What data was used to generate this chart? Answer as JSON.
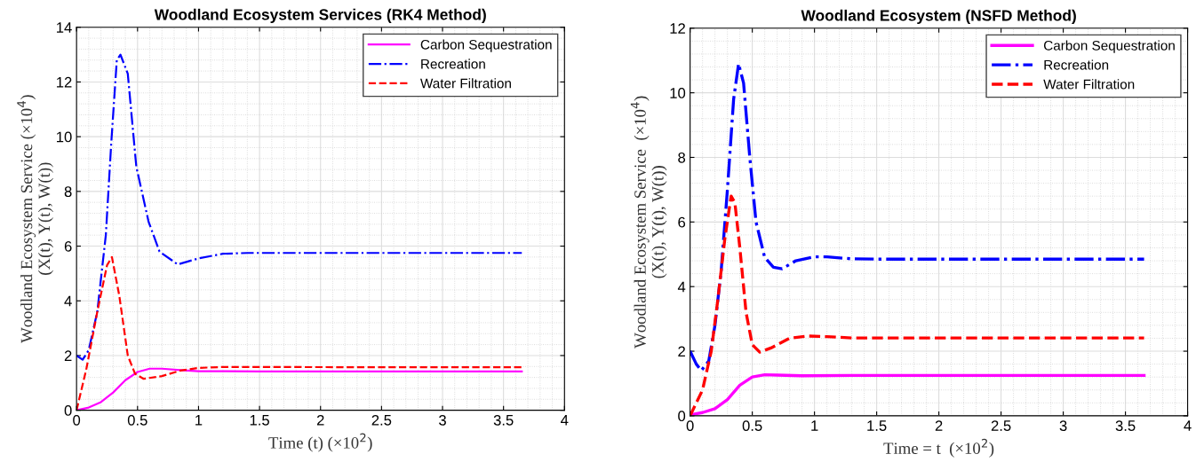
{
  "chart_data": [
    {
      "type": "line",
      "title": "Woodland Ecosystem Services (RK4 Method)",
      "xlabel": "Time (t) (×10$^{2}$)",
      "ylabel": "Woodland Ecosystem Service (×10$^{4}$)\n(X(t), Y(t), W(t))",
      "xlim": [
        0,
        4
      ],
      "xticks": [
        0,
        0.5,
        1,
        1.5,
        2,
        2.5,
        3,
        3.5,
        4
      ],
      "ylim": [
        0,
        14
      ],
      "yticks": [
        0,
        2,
        4,
        6,
        8,
        10,
        12,
        14
      ],
      "grid": true,
      "legend": "top right",
      "series": [
        {
          "name": "Carbon Sequestration",
          "color": "#ff00ff",
          "line_style": "solid",
          "x": [
            0,
            0.1,
            0.2,
            0.3,
            0.4,
            0.5,
            0.6,
            0.7,
            0.85,
            1.0,
            1.5,
            3.65
          ],
          "values": [
            0,
            0.1,
            0.3,
            0.65,
            1.1,
            1.4,
            1.52,
            1.52,
            1.47,
            1.43,
            1.42,
            1.42
          ]
        },
        {
          "name": "Recreation",
          "color": "#0000ff",
          "line_style": "dashdot",
          "x": [
            0,
            0.05,
            0.1,
            0.17,
            0.24,
            0.285,
            0.33,
            0.36,
            0.42,
            0.49,
            0.59,
            0.68,
            0.83,
            1.0,
            1.2,
            1.4,
            3.65
          ],
          "values": [
            2.0,
            1.85,
            2.2,
            3.6,
            6.4,
            9.8,
            12.8,
            13.0,
            12.3,
            8.9,
            6.9,
            5.8,
            5.33,
            5.55,
            5.72,
            5.75,
            5.75
          ]
        },
        {
          "name": "Water Filtration",
          "color": "#ff0000",
          "line_style": "dashed",
          "x": [
            0,
            0.08,
            0.17,
            0.25,
            0.29,
            0.35,
            0.42,
            0.48,
            0.55,
            0.7,
            0.85,
            1.0,
            1.2,
            3.65
          ],
          "values": [
            0,
            1.5,
            3.6,
            5.3,
            5.6,
            4.2,
            2.0,
            1.33,
            1.15,
            1.25,
            1.45,
            1.55,
            1.58,
            1.57
          ]
        }
      ]
    },
    {
      "type": "line",
      "title": "Woodland Ecosystem (NSFD Method)",
      "xlabel": "Time = t  (×10$^{2}$)",
      "ylabel": "Woodland Ecosystem Service  (×10$^{4}$)\n(X(t), Y(t), W(t))",
      "xlim": [
        0,
        4
      ],
      "xticks": [
        0,
        0.5,
        1,
        1.5,
        2,
        2.5,
        3,
        3.5,
        4
      ],
      "ylim": [
        0,
        12
      ],
      "yticks": [
        0,
        2,
        4,
        6,
        8,
        10,
        12
      ],
      "grid": true,
      "legend": "top right",
      "series": [
        {
          "name": "Carbon Sequestration",
          "color": "#ff00ff",
          "line_style": "solid",
          "x": [
            0,
            0.1,
            0.2,
            0.3,
            0.4,
            0.5,
            0.6,
            0.7,
            0.9,
            1.3,
            3.65
          ],
          "values": [
            0.03,
            0.1,
            0.22,
            0.5,
            0.95,
            1.2,
            1.27,
            1.26,
            1.24,
            1.25,
            1.25
          ]
        },
        {
          "name": "Recreation",
          "color": "#0000ff",
          "line_style": "dashdot",
          "x": [
            0,
            0.05,
            0.09,
            0.15,
            0.2,
            0.25,
            0.3,
            0.35,
            0.39,
            0.43,
            0.48,
            0.53,
            0.6,
            0.67,
            0.74,
            0.85,
            1.0,
            1.1,
            1.3,
            1.5,
            3.65
          ],
          "values": [
            2.0,
            1.6,
            1.4,
            1.7,
            2.8,
            4.5,
            7.0,
            9.8,
            10.9,
            10.3,
            8.0,
            6.0,
            4.9,
            4.6,
            4.55,
            4.8,
            4.92,
            4.92,
            4.86,
            4.85,
            4.85
          ]
        },
        {
          "name": "Water Filtration",
          "color": "#ff0000",
          "line_style": "dashed",
          "x": [
            0,
            0.1,
            0.17,
            0.22,
            0.28,
            0.33,
            0.36,
            0.4,
            0.45,
            0.5,
            0.56,
            0.65,
            0.8,
            0.95,
            1.1,
            1.3,
            3.65
          ],
          "values": [
            0,
            0.8,
            2.0,
            3.5,
            5.5,
            6.8,
            6.6,
            5.2,
            3.2,
            2.2,
            1.97,
            2.1,
            2.4,
            2.47,
            2.45,
            2.41,
            2.41
          ]
        }
      ]
    }
  ]
}
